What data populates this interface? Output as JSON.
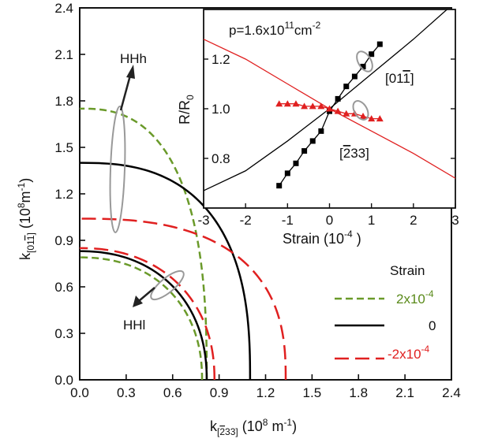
{
  "chart_data": [
    {
      "type": "line",
      "title": "",
      "xlabel": "k[233] (10^8 m^-1)",
      "ylabel": "k[011] (10^8 m^-1)",
      "xlim": [
        0,
        2.4
      ],
      "ylim": [
        0,
        2.4
      ],
      "x_ticks": [
        "0.0",
        "0.3",
        "0.6",
        "0.9",
        "1.2",
        "1.5",
        "1.8",
        "2.1",
        "2.4"
      ],
      "y_ticks": [
        "0.0",
        "0.3",
        "0.6",
        "0.9",
        "1.2",
        "1.5",
        "1.8",
        "2.1",
        "2.4"
      ],
      "legend_title": "Strain",
      "legend_position": "bottom-right",
      "series": [
        {
          "name": "2x10^-4",
          "color": "#6a9a2a",
          "dash": "dashed",
          "band": "HHh",
          "ky_at_kx0": 1.75,
          "kx_at_ky0": 0.82
        },
        {
          "name": "0",
          "color": "#000000",
          "dash": "solid",
          "band": "HHh",
          "ky_at_kx0": 1.4,
          "kx_at_ky0": 1.1
        },
        {
          "name": "-2x10^-4",
          "color": "#e02020",
          "dash": "long-dashed",
          "band": "HHh",
          "ky_at_kx0": 1.04,
          "kx_at_ky0": 1.33
        },
        {
          "name": "2x10^-4",
          "color": "#6a9a2a",
          "dash": "dashed",
          "band": "HHl",
          "ky_at_kx0": 0.79,
          "kx_at_ky0": 0.79
        },
        {
          "name": "0",
          "color": "#000000",
          "dash": "solid",
          "band": "HHl",
          "ky_at_kx0": 0.83,
          "kx_at_ky0": 0.82
        },
        {
          "name": "-2x10^-4",
          "color": "#e02020",
          "dash": "long-dashed",
          "band": "HHl",
          "ky_at_kx0": 0.85,
          "kx_at_ky0": 0.87
        }
      ],
      "annotations": [
        "HHh",
        "HHl"
      ]
    },
    {
      "type": "line",
      "title": "p=1.6x10^11 cm^-2",
      "xlabel": "Strain (10^-4)",
      "ylabel": "R/R0",
      "xlim": [
        -3,
        3
      ],
      "ylim": [
        0.6,
        1.4
      ],
      "x_ticks": [
        "-3",
        "-2",
        "-1",
        "0",
        "1",
        "2",
        "3"
      ],
      "y_ticks": [
        "0.8",
        "1.0",
        "1.2"
      ],
      "series": [
        {
          "name": "[011]",
          "color": "#000000",
          "kind": "line",
          "x": [
            -3,
            -2,
            -1,
            0,
            1,
            2,
            3
          ],
          "y": [
            0.67,
            0.75,
            0.87,
            1.0,
            1.14,
            1.28,
            1.43
          ]
        },
        {
          "name": "[233]",
          "color": "#e02020",
          "kind": "line",
          "x": [
            -3,
            -2,
            -1,
            0,
            1,
            2,
            3
          ],
          "y": [
            1.28,
            1.2,
            1.1,
            1.0,
            0.91,
            0.82,
            0.72
          ]
        },
        {
          "name": "[011]",
          "color": "#000000",
          "kind": "markers",
          "marker": "square",
          "x": [
            -1.2,
            -1.0,
            -0.8,
            -0.6,
            -0.4,
            -0.2,
            0.0,
            0.2,
            0.4,
            0.6,
            0.8,
            1.0,
            1.2
          ],
          "y": [
            0.69,
            0.74,
            0.78,
            0.83,
            0.87,
            0.91,
            0.99,
            1.04,
            1.09,
            1.13,
            1.17,
            1.22,
            1.26
          ]
        },
        {
          "name": "[233]",
          "color": "#e02020",
          "kind": "markers",
          "marker": "triangle",
          "x": [
            -1.2,
            -1.0,
            -0.8,
            -0.6,
            -0.4,
            -0.2,
            0.0,
            0.2,
            0.4,
            0.6,
            0.8,
            1.0,
            1.2
          ],
          "y": [
            1.02,
            1.02,
            1.02,
            1.01,
            1.01,
            1.01,
            1.0,
            0.99,
            0.98,
            0.98,
            0.97,
            0.96,
            0.96
          ]
        }
      ]
    }
  ]
}
